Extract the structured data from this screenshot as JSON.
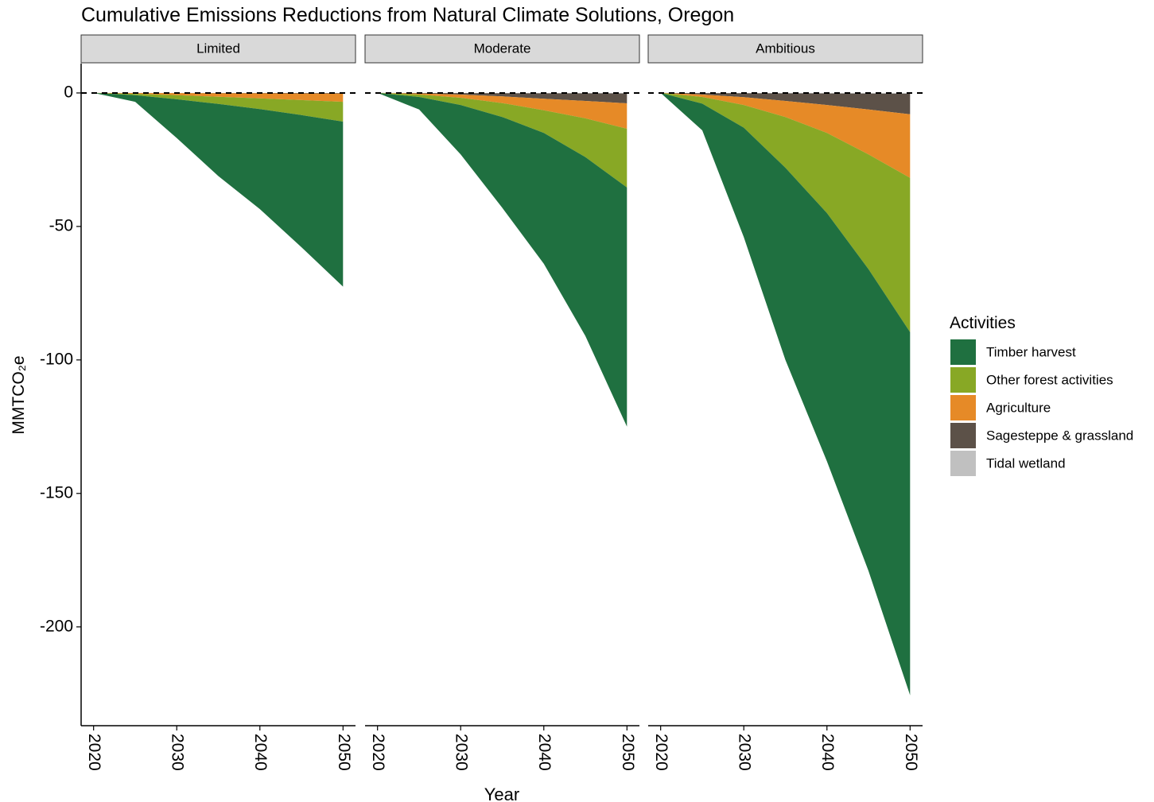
{
  "title": "Cumulative Emissions Reductions from Natural Climate Solutions, Oregon",
  "y_label": "MMTCO₂e",
  "x_label": "Year",
  "legend_title": "Activities",
  "chart_data": [
    {
      "type": "area",
      "title": "Limited",
      "x": [
        2020,
        2025,
        2030,
        2035,
        2040,
        2045,
        2050
      ],
      "xlim": [
        2018.5,
        2051.5
      ],
      "xticks": [
        2020,
        2030,
        2040,
        2050
      ],
      "ylim": [
        -237,
        11
      ],
      "yticks": [
        0,
        -50,
        -100,
        -150,
        -200
      ],
      "hline": 0,
      "series": [
        {
          "name": "Timber harvest",
          "color": "#1f7040",
          "values": [
            0,
            -2.5,
            -14.5,
            -27,
            -37.5,
            -49.5,
            -61.8
          ]
        },
        {
          "name": "Other forest activities",
          "color": "#88a825",
          "values": [
            0,
            -0.5,
            -1.5,
            -2.7,
            -4,
            -5.6,
            -7.4
          ]
        },
        {
          "name": "Agriculture",
          "color": "#e68a27",
          "values": [
            0,
            -0.3,
            -0.8,
            -1.3,
            -1.9,
            -2.5,
            -3.1
          ]
        },
        {
          "name": "Sagesteppe & grassland",
          "color": "#5c5148",
          "values": [
            0,
            -0.02,
            -0.05,
            -0.1,
            -0.1,
            -0.15,
            -0.2
          ]
        },
        {
          "name": "Tidal wetland",
          "color": "#c0c0c0",
          "values": [
            0,
            -0.01,
            -0.01,
            -0.02,
            -0.02,
            -0.03,
            -0.03
          ]
        }
      ]
    },
    {
      "type": "area",
      "title": "Moderate",
      "x": [
        2020,
        2025,
        2030,
        2035,
        2040,
        2045,
        2050
      ],
      "xlim": [
        2018.5,
        2051.5
      ],
      "xticks": [
        2020,
        2030,
        2040,
        2050
      ],
      "hline": 0,
      "series": [
        {
          "name": "Timber harvest",
          "color": "#1f7040",
          "values": [
            0,
            -4.7,
            -18.5,
            -34,
            -49,
            -67,
            -89.6
          ]
        },
        {
          "name": "Other forest activities",
          "color": "#88a825",
          "values": [
            0,
            -0.9,
            -2.7,
            -5.2,
            -8.5,
            -14.5,
            -22
          ]
        },
        {
          "name": "Agriculture",
          "color": "#e68a27",
          "values": [
            0,
            -0.4,
            -1.2,
            -2.5,
            -4.3,
            -6.5,
            -9.5
          ]
        },
        {
          "name": "Sagesteppe & grassland",
          "color": "#5c5148",
          "values": [
            0,
            -0.18,
            -0.55,
            -1.2,
            -2.07,
            -2.83,
            -3.7
          ]
        },
        {
          "name": "Tidal wetland",
          "color": "#c0c0c0",
          "values": [
            0,
            -0.02,
            -0.05,
            -0.1,
            -0.13,
            -0.17,
            -0.2
          ]
        }
      ]
    },
    {
      "type": "area",
      "title": "Ambitious",
      "x": [
        2020,
        2025,
        2030,
        2035,
        2040,
        2045,
        2050
      ],
      "xlim": [
        2018.5,
        2051.5
      ],
      "xticks": [
        2020,
        2030,
        2040,
        2050
      ],
      "hline": 0,
      "series": [
        {
          "name": "Timber harvest",
          "color": "#1f7040",
          "values": [
            0,
            -10,
            -41,
            -72,
            -93,
            -113,
            -136
          ]
        },
        {
          "name": "Other forest activities",
          "color": "#88a825",
          "values": [
            0,
            -2.5,
            -8.5,
            -19,
            -30,
            -43,
            -57.8
          ]
        },
        {
          "name": "Agriculture",
          "color": "#e68a27",
          "values": [
            0,
            -0.9,
            -2.9,
            -6,
            -10.5,
            -16.8,
            -23.8
          ]
        },
        {
          "name": "Sagesteppe & grassland",
          "color": "#5c5148",
          "values": [
            0,
            -0.55,
            -1.5,
            -2.85,
            -4.3,
            -5.95,
            -7.7
          ]
        },
        {
          "name": "Tidal wetland",
          "color": "#c0c0c0",
          "values": [
            0,
            -0.05,
            -0.1,
            -0.15,
            -0.2,
            -0.25,
            -0.3
          ]
        }
      ]
    }
  ]
}
